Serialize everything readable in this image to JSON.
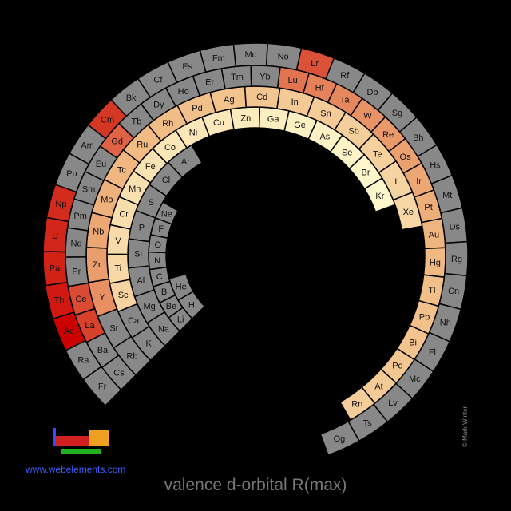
{
  "chart_data": {
    "type": "heatmap",
    "title": "valence d-orbital R(max)",
    "color_scale": {
      "no_data": "#888888",
      "low": "#fffbd0",
      "mid": "#f0b880",
      "high": "#d43020",
      "max": "#cc0000"
    },
    "elements": [
      {
        "symbol": "H",
        "v": null
      },
      {
        "symbol": "He",
        "v": null
      },
      {
        "symbol": "Li",
        "v": null
      },
      {
        "symbol": "Be",
        "v": null
      },
      {
        "symbol": "B",
        "v": null
      },
      {
        "symbol": "C",
        "v": null
      },
      {
        "symbol": "N",
        "v": null
      },
      {
        "symbol": "O",
        "v": null
      },
      {
        "symbol": "F",
        "v": null
      },
      {
        "symbol": "Ne",
        "v": null
      },
      {
        "symbol": "Na",
        "v": null
      },
      {
        "symbol": "Mg",
        "v": null
      },
      {
        "symbol": "Al",
        "v": null
      },
      {
        "symbol": "Si",
        "v": null
      },
      {
        "symbol": "P",
        "v": null
      },
      {
        "symbol": "S",
        "v": null
      },
      {
        "symbol": "Cl",
        "v": null
      },
      {
        "symbol": "Ar",
        "v": null
      },
      {
        "symbol": "K",
        "v": null
      },
      {
        "symbol": "Ca",
        "v": null
      },
      {
        "symbol": "Sc",
        "v": 0.3
      },
      {
        "symbol": "Ti",
        "v": 0.26
      },
      {
        "symbol": "V",
        "v": 0.24
      },
      {
        "symbol": "Cr",
        "v": 0.22
      },
      {
        "symbol": "Mn",
        "v": 0.2
      },
      {
        "symbol": "Fe",
        "v": 0.18
      },
      {
        "symbol": "Co",
        "v": 0.16
      },
      {
        "symbol": "Ni",
        "v": 0.15
      },
      {
        "symbol": "Cu",
        "v": 0.14
      },
      {
        "symbol": "Zn",
        "v": 0.12
      },
      {
        "symbol": "Ga",
        "v": 0.1
      },
      {
        "symbol": "Ge",
        "v": 0.08
      },
      {
        "symbol": "As",
        "v": 0.07
      },
      {
        "symbol": "Se",
        "v": 0.05
      },
      {
        "symbol": "Br",
        "v": 0.04
      },
      {
        "symbol": "Kr",
        "v": 0.03
      },
      {
        "symbol": "Rb",
        "v": null
      },
      {
        "symbol": "Sr",
        "v": null
      },
      {
        "symbol": "Y",
        "v": 0.62
      },
      {
        "symbol": "Zr",
        "v": 0.58
      },
      {
        "symbol": "Nb",
        "v": 0.55
      },
      {
        "symbol": "Mo",
        "v": 0.52
      },
      {
        "symbol": "Tc",
        "v": 0.5
      },
      {
        "symbol": "Ru",
        "v": 0.48
      },
      {
        "symbol": "Rh",
        "v": 0.46
      },
      {
        "symbol": "Pd",
        "v": 0.44
      },
      {
        "symbol": "Ag",
        "v": 0.42
      },
      {
        "symbol": "Cd",
        "v": 0.4
      },
      {
        "symbol": "In",
        "v": 0.37
      },
      {
        "symbol": "Sn",
        "v": 0.35
      },
      {
        "symbol": "Sb",
        "v": 0.33
      },
      {
        "symbol": "Te",
        "v": 0.31
      },
      {
        "symbol": "I",
        "v": 0.29
      },
      {
        "symbol": "Xe",
        "v": 0.27
      },
      {
        "symbol": "Cs",
        "v": null
      },
      {
        "symbol": "Ba",
        "v": null
      },
      {
        "symbol": "La",
        "v": 0.85
      },
      {
        "symbol": "Ce",
        "v": 0.82
      },
      {
        "symbol": "Pr",
        "v": null
      },
      {
        "symbol": "Nd",
        "v": null
      },
      {
        "symbol": "Pm",
        "v": null
      },
      {
        "symbol": "Sm",
        "v": null
      },
      {
        "symbol": "Eu",
        "v": null
      },
      {
        "symbol": "Gd",
        "v": 0.75
      },
      {
        "symbol": "Tb",
        "v": null
      },
      {
        "symbol": "Dy",
        "v": null
      },
      {
        "symbol": "Ho",
        "v": null
      },
      {
        "symbol": "Er",
        "v": null
      },
      {
        "symbol": "Tm",
        "v": null
      },
      {
        "symbol": "Yb",
        "v": null
      },
      {
        "symbol": "Lu",
        "v": 0.7
      },
      {
        "symbol": "Hf",
        "v": 0.66
      },
      {
        "symbol": "Ta",
        "v": 0.64
      },
      {
        "symbol": "W",
        "v": 0.61
      },
      {
        "symbol": "Re",
        "v": 0.59
      },
      {
        "symbol": "Os",
        "v": 0.57
      },
      {
        "symbol": "Ir",
        "v": 0.55
      },
      {
        "symbol": "Pt",
        "v": 0.53
      },
      {
        "symbol": "Au",
        "v": 0.51
      },
      {
        "symbol": "Hg",
        "v": 0.49
      },
      {
        "symbol": "Tl",
        "v": 0.45
      },
      {
        "symbol": "Pb",
        "v": 0.43
      },
      {
        "symbol": "Bi",
        "v": 0.41
      },
      {
        "symbol": "Po",
        "v": 0.39
      },
      {
        "symbol": "At",
        "v": 0.36
      },
      {
        "symbol": "Rn",
        "v": 0.34
      },
      {
        "symbol": "Fr",
        "v": null
      },
      {
        "symbol": "Ra",
        "v": null
      },
      {
        "symbol": "Ac",
        "v": 1.0
      },
      {
        "symbol": "Th",
        "v": 0.95
      },
      {
        "symbol": "Pa",
        "v": 0.93
      },
      {
        "symbol": "U",
        "v": 0.92
      },
      {
        "symbol": "Np",
        "v": 0.91
      },
      {
        "symbol": "Pu",
        "v": null
      },
      {
        "symbol": "Am",
        "v": null
      },
      {
        "symbol": "Cm",
        "v": 0.88
      },
      {
        "symbol": "Bk",
        "v": null
      },
      {
        "symbol": "Cf",
        "v": null
      },
      {
        "symbol": "Es",
        "v": null
      },
      {
        "symbol": "Fm",
        "v": null
      },
      {
        "symbol": "Md",
        "v": null
      },
      {
        "symbol": "No",
        "v": null
      },
      {
        "symbol": "Lr",
        "v": 0.8
      },
      {
        "symbol": "Rf",
        "v": null
      },
      {
        "symbol": "Db",
        "v": null
      },
      {
        "symbol": "Sg",
        "v": null
      },
      {
        "symbol": "Bh",
        "v": null
      },
      {
        "symbol": "Hs",
        "v": null
      },
      {
        "symbol": "Mt",
        "v": null
      },
      {
        "symbol": "Ds",
        "v": null
      },
      {
        "symbol": "Rg",
        "v": null
      },
      {
        "symbol": "Cn",
        "v": null
      },
      {
        "symbol": "Nh",
        "v": null
      },
      {
        "symbol": "Fl",
        "v": null
      },
      {
        "symbol": "Mc",
        "v": null
      },
      {
        "symbol": "Lv",
        "v": null
      },
      {
        "symbol": "Ts",
        "v": null
      },
      {
        "symbol": "Og",
        "v": null
      }
    ]
  },
  "footer": {
    "title": "valence d-orbital R(max)",
    "site": "www.webelements.com",
    "credit": "© Mark Winter"
  }
}
